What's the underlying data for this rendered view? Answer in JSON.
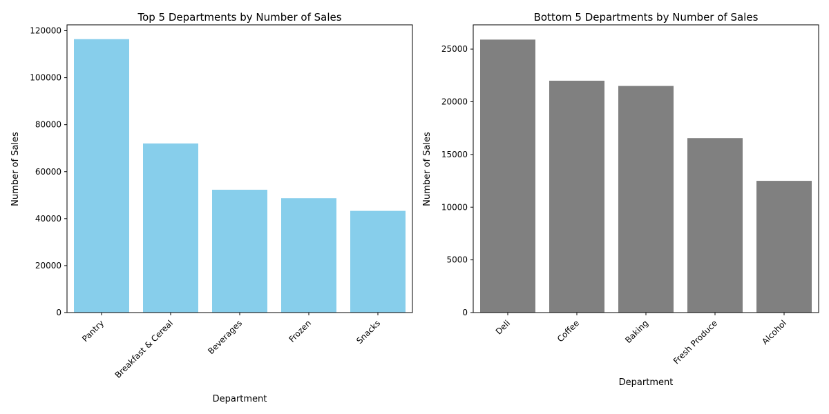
{
  "chart_data": [
    {
      "type": "bar",
      "title": "Top 5 Departments by Number of Sales",
      "xlabel": "Department",
      "ylabel": "Number of Sales",
      "categories": [
        "Pantry",
        "Breakfast & Cereal",
        "Beverages",
        "Frozen",
        "Snacks"
      ],
      "values": [
        116400,
        72000,
        52300,
        48700,
        43300
      ],
      "ylim": [
        0,
        122500
      ],
      "yticks": [
        0,
        20000,
        40000,
        60000,
        80000,
        100000,
        120000
      ],
      "bar_color": "#87ceeb",
      "xtick_rotation_deg": 45,
      "grid": false,
      "legend": "none"
    },
    {
      "type": "bar",
      "title": "Bottom 5 Departments by Number of Sales",
      "xlabel": "Department",
      "ylabel": "Number of Sales",
      "categories": [
        "Deli",
        "Coffee",
        "Baking",
        "Fresh Produce",
        "Alcohol"
      ],
      "values": [
        25900,
        22000,
        21500,
        16550,
        12500
      ],
      "ylim": [
        0,
        27300
      ],
      "yticks": [
        0,
        5000,
        10000,
        15000,
        20000,
        25000
      ],
      "bar_color": "#808080",
      "xtick_rotation_deg": 45,
      "grid": false,
      "legend": "none"
    }
  ]
}
